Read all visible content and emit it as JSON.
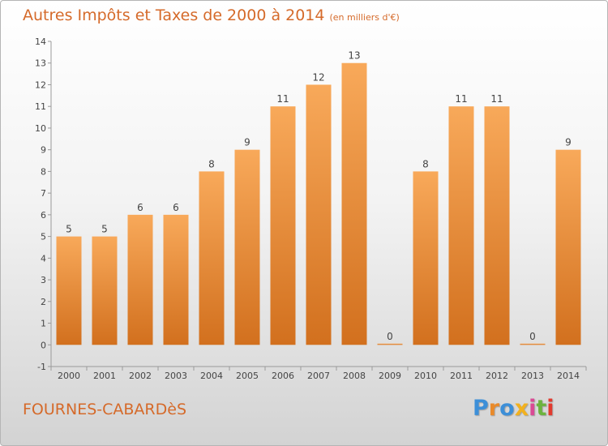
{
  "header": {
    "title": "Autres Impôts et Taxes de 2000 à 2014",
    "subtitle": "(en milliers d'€)"
  },
  "footer": {
    "town": "FOURNES-CABARDèS",
    "logo": "Proxiti",
    "logo_colors": [
      "#3d8fd8",
      "#e98a2a",
      "#3d8fd8",
      "#f2b11e",
      "#d94a94",
      "#6cb33e",
      "#e23a2e"
    ]
  },
  "colors": {
    "bar_light": "#f8a95a",
    "bar_dark": "#d2701e",
    "text": "#d56a2a"
  },
  "chart_data": {
    "type": "bar",
    "categories": [
      "2000",
      "2001",
      "2002",
      "2003",
      "2004",
      "2005",
      "2006",
      "2007",
      "2008",
      "2009",
      "2010",
      "2011",
      "2012",
      "2013",
      "2014"
    ],
    "values": [
      5,
      5,
      6,
      6,
      8,
      9,
      11,
      12,
      13,
      0,
      8,
      11,
      11,
      0,
      9
    ],
    "data_labels": [
      "5",
      "5",
      "6",
      "6",
      "8",
      "9",
      "11",
      "12",
      "13",
      "0",
      "8",
      "11",
      "11",
      "0",
      "9"
    ],
    "yticks": [
      "-1",
      "0",
      "1",
      "2",
      "3",
      "4",
      "5",
      "6",
      "7",
      "8",
      "9",
      "10",
      "11",
      "12",
      "13",
      "14"
    ],
    "ylim": [
      -1,
      14
    ],
    "grid": false
  }
}
